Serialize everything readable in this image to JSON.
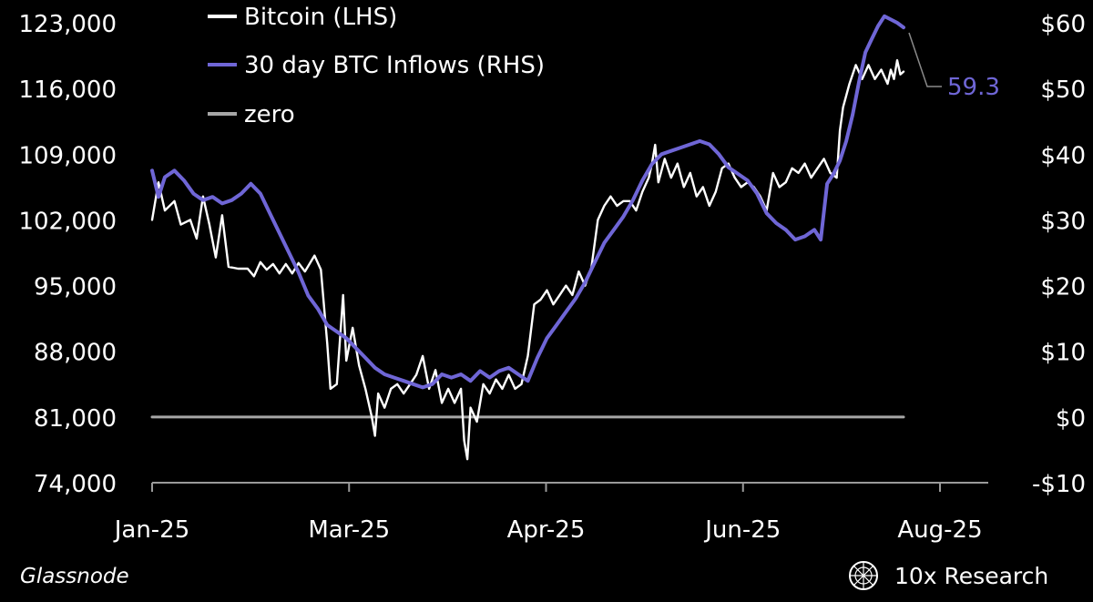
{
  "chart_data": {
    "type": "line",
    "title": "",
    "xlabel": "",
    "ylabel_left": "",
    "ylabel_right": "",
    "x_tick_labels": [
      "Jan-25",
      "Mar-25",
      "Apr-25",
      "Jun-25",
      "Aug-25"
    ],
    "x_range": [
      "2025-01-01",
      "2025-08-25"
    ],
    "x_ticks": [
      "2025-01-01",
      "2025-03-03",
      "2025-05-03",
      "2025-07-03",
      "2025-09-02"
    ],
    "y_left": {
      "ticks": [
        74000,
        81000,
        88000,
        95000,
        102000,
        109000,
        116000,
        123000
      ],
      "tick_labels": [
        "74,000",
        "81,000",
        "88,000",
        "95,000",
        "102,000",
        "109,000",
        "116,000",
        "123,000"
      ],
      "range": [
        74000,
        123000
      ]
    },
    "y_right": {
      "ticks": [
        -10,
        0,
        10,
        20,
        30,
        40,
        50,
        60
      ],
      "tick_labels": [
        "-$10",
        "$0",
        "$10",
        "$20",
        "$30",
        "$40",
        "$50",
        "$60"
      ],
      "range": [
        -10,
        60
      ]
    },
    "legend": {
      "placement": "top-left"
    },
    "series": [
      {
        "name": "Bitcoin (LHS)",
        "axis": "left",
        "color": "#ffffff",
        "points": [
          [
            "2025-01-01",
            102000
          ],
          [
            "2025-01-03",
            106000
          ],
          [
            "2025-01-05",
            103000
          ],
          [
            "2025-01-08",
            104000
          ],
          [
            "2025-01-10",
            101500
          ],
          [
            "2025-01-13",
            102000
          ],
          [
            "2025-01-15",
            100000
          ],
          [
            "2025-01-17",
            104500
          ],
          [
            "2025-01-19",
            101500
          ],
          [
            "2025-01-21",
            98000
          ],
          [
            "2025-01-23",
            102500
          ],
          [
            "2025-01-25",
            97000
          ],
          [
            "2025-01-28",
            96800
          ],
          [
            "2025-01-31",
            96800
          ],
          [
            "2025-02-02",
            96000
          ],
          [
            "2025-02-04",
            97500
          ],
          [
            "2025-02-06",
            96700
          ],
          [
            "2025-02-08",
            97300
          ],
          [
            "2025-02-10",
            96300
          ],
          [
            "2025-02-12",
            97300
          ],
          [
            "2025-02-14",
            96300
          ],
          [
            "2025-02-16",
            97400
          ],
          [
            "2025-02-18",
            96500
          ],
          [
            "2025-02-21",
            98200
          ],
          [
            "2025-02-23",
            96700
          ],
          [
            "2025-02-25",
            88800
          ],
          [
            "2025-02-26",
            84000
          ],
          [
            "2025-02-28",
            84500
          ],
          [
            "2025-03-02",
            94000
          ],
          [
            "2025-03-03",
            87000
          ],
          [
            "2025-03-05",
            90500
          ],
          [
            "2025-03-07",
            86500
          ],
          [
            "2025-03-09",
            84000
          ],
          [
            "2025-03-11",
            81000
          ],
          [
            "2025-03-12",
            79000
          ],
          [
            "2025-03-13",
            83500
          ],
          [
            "2025-03-15",
            82000
          ],
          [
            "2025-03-17",
            84000
          ],
          [
            "2025-03-19",
            84500
          ],
          [
            "2025-03-21",
            83500
          ],
          [
            "2025-03-23",
            84500
          ],
          [
            "2025-03-25",
            85500
          ],
          [
            "2025-03-27",
            87500
          ],
          [
            "2025-03-29",
            84000
          ],
          [
            "2025-03-31",
            86000
          ],
          [
            "2025-04-02",
            82500
          ],
          [
            "2025-04-04",
            84000
          ],
          [
            "2025-04-06",
            82500
          ],
          [
            "2025-04-08",
            84000
          ],
          [
            "2025-04-09",
            78500
          ],
          [
            "2025-04-10",
            76500
          ],
          [
            "2025-04-11",
            82000
          ],
          [
            "2025-04-13",
            80500
          ],
          [
            "2025-04-15",
            84500
          ],
          [
            "2025-04-17",
            83500
          ],
          [
            "2025-04-19",
            85000
          ],
          [
            "2025-04-21",
            84000
          ],
          [
            "2025-04-23",
            85500
          ],
          [
            "2025-04-25",
            84000
          ],
          [
            "2025-04-27",
            84500
          ],
          [
            "2025-04-29",
            87500
          ],
          [
            "2025-05-01",
            93000
          ],
          [
            "2025-05-03",
            93500
          ],
          [
            "2025-05-05",
            94500
          ],
          [
            "2025-05-07",
            93000
          ],
          [
            "2025-05-09",
            94000
          ],
          [
            "2025-05-11",
            95000
          ],
          [
            "2025-05-13",
            94000
          ],
          [
            "2025-05-15",
            96500
          ],
          [
            "2025-05-17",
            95000
          ],
          [
            "2025-05-19",
            97000
          ],
          [
            "2025-05-21",
            102000
          ],
          [
            "2025-05-23",
            103500
          ],
          [
            "2025-05-25",
            104500
          ],
          [
            "2025-05-27",
            103500
          ],
          [
            "2025-05-29",
            104000
          ],
          [
            "2025-05-31",
            104000
          ],
          [
            "2025-06-02",
            103000
          ],
          [
            "2025-06-04",
            105000
          ],
          [
            "2025-06-06",
            106500
          ],
          [
            "2025-06-07",
            108000
          ],
          [
            "2025-06-08",
            110000
          ],
          [
            "2025-06-09",
            106000
          ],
          [
            "2025-06-11",
            108500
          ],
          [
            "2025-06-13",
            106500
          ],
          [
            "2025-06-15",
            108000
          ],
          [
            "2025-06-17",
            105500
          ],
          [
            "2025-06-19",
            107000
          ],
          [
            "2025-06-21",
            104500
          ],
          [
            "2025-06-23",
            105500
          ],
          [
            "2025-06-25",
            103500
          ],
          [
            "2025-06-27",
            105000
          ],
          [
            "2025-06-29",
            107500
          ],
          [
            "2025-07-01",
            108000
          ],
          [
            "2025-07-03",
            106500
          ],
          [
            "2025-07-05",
            105500
          ],
          [
            "2025-07-07",
            106000
          ],
          [
            "2025-07-09",
            105500
          ],
          [
            "2025-07-11",
            104500
          ],
          [
            "2025-07-13",
            103000
          ],
          [
            "2025-07-15",
            107000
          ],
          [
            "2025-07-17",
            105500
          ],
          [
            "2025-07-19",
            106000
          ],
          [
            "2025-07-21",
            107500
          ],
          [
            "2025-07-23",
            107000
          ],
          [
            "2025-07-25",
            108000
          ],
          [
            "2025-07-27",
            106500
          ],
          [
            "2025-07-29",
            107500
          ],
          [
            "2025-07-31",
            108500
          ],
          [
            "2025-08-02",
            107000
          ],
          [
            "2025-08-04",
            106500
          ],
          [
            "2025-08-05",
            111500
          ],
          [
            "2025-08-06",
            114000
          ],
          [
            "2025-08-08",
            116500
          ],
          [
            "2025-08-10",
            118500
          ],
          [
            "2025-08-12",
            117000
          ],
          [
            "2025-08-14",
            118500
          ],
          [
            "2025-08-16",
            117000
          ],
          [
            "2025-08-18",
            118000
          ],
          [
            "2025-08-20",
            116500
          ],
          [
            "2025-08-21",
            118000
          ],
          [
            "2025-08-22",
            117000
          ],
          [
            "2025-08-23",
            119000
          ],
          [
            "2025-08-24",
            117500
          ],
          [
            "2025-08-25",
            117800
          ]
        ]
      },
      {
        "name": "30 day BTC Inflows (RHS)",
        "axis": "right",
        "color": "#6f66d6",
        "points": [
          [
            "2025-01-01",
            37.5
          ],
          [
            "2025-01-03",
            33.5
          ],
          [
            "2025-01-05",
            36.5
          ],
          [
            "2025-01-08",
            37.5
          ],
          [
            "2025-01-11",
            36
          ],
          [
            "2025-01-14",
            34
          ],
          [
            "2025-01-17",
            33
          ],
          [
            "2025-01-20",
            33.5
          ],
          [
            "2025-01-23",
            32.5
          ],
          [
            "2025-01-26",
            33
          ],
          [
            "2025-01-29",
            34
          ],
          [
            "2025-02-01",
            35.5
          ],
          [
            "2025-02-04",
            34
          ],
          [
            "2025-02-07",
            31
          ],
          [
            "2025-02-10",
            28
          ],
          [
            "2025-02-13",
            25
          ],
          [
            "2025-02-16",
            22
          ],
          [
            "2025-02-19",
            18.5
          ],
          [
            "2025-02-22",
            16.5
          ],
          [
            "2025-02-25",
            14
          ],
          [
            "2025-02-28",
            13
          ],
          [
            "2025-03-03",
            12
          ],
          [
            "2025-03-06",
            10.5
          ],
          [
            "2025-03-09",
            9
          ],
          [
            "2025-03-12",
            7.5
          ],
          [
            "2025-03-15",
            6.5
          ],
          [
            "2025-03-18",
            6
          ],
          [
            "2025-03-21",
            5.5
          ],
          [
            "2025-03-24",
            5
          ],
          [
            "2025-03-27",
            4.5
          ],
          [
            "2025-03-30",
            5
          ],
          [
            "2025-04-02",
            6.5
          ],
          [
            "2025-04-05",
            6
          ],
          [
            "2025-04-08",
            6.5
          ],
          [
            "2025-04-11",
            5.5
          ],
          [
            "2025-04-14",
            7
          ],
          [
            "2025-04-17",
            6
          ],
          [
            "2025-04-20",
            7
          ],
          [
            "2025-04-23",
            7.5
          ],
          [
            "2025-04-26",
            6.5
          ],
          [
            "2025-04-29",
            5.5
          ],
          [
            "2025-05-02",
            9
          ],
          [
            "2025-05-05",
            12
          ],
          [
            "2025-05-08",
            14
          ],
          [
            "2025-05-11",
            16
          ],
          [
            "2025-05-14",
            18
          ],
          [
            "2025-05-17",
            20.5
          ],
          [
            "2025-05-20",
            23.5
          ],
          [
            "2025-05-23",
            26.5
          ],
          [
            "2025-05-26",
            28.5
          ],
          [
            "2025-05-29",
            30.5
          ],
          [
            "2025-06-01",
            33
          ],
          [
            "2025-06-04",
            36
          ],
          [
            "2025-06-07",
            38.5
          ],
          [
            "2025-06-10",
            40
          ],
          [
            "2025-06-13",
            40.5
          ],
          [
            "2025-06-16",
            41
          ],
          [
            "2025-06-19",
            41.5
          ],
          [
            "2025-06-22",
            42
          ],
          [
            "2025-06-25",
            41.5
          ],
          [
            "2025-06-28",
            40
          ],
          [
            "2025-07-01",
            38
          ],
          [
            "2025-07-04",
            37
          ],
          [
            "2025-07-07",
            36
          ],
          [
            "2025-07-10",
            34
          ],
          [
            "2025-07-13",
            31
          ],
          [
            "2025-07-16",
            29.5
          ],
          [
            "2025-07-19",
            28.5
          ],
          [
            "2025-07-22",
            27
          ],
          [
            "2025-07-25",
            27.5
          ],
          [
            "2025-07-28",
            28.5
          ],
          [
            "2025-07-30",
            27
          ],
          [
            "2025-08-01",
            35.5
          ],
          [
            "2025-08-03",
            37
          ],
          [
            "2025-08-05",
            39
          ],
          [
            "2025-08-07",
            42
          ],
          [
            "2025-08-09",
            46
          ],
          [
            "2025-08-11",
            51
          ],
          [
            "2025-08-13",
            55.5
          ],
          [
            "2025-08-15",
            57.5
          ],
          [
            "2025-08-17",
            59.5
          ],
          [
            "2025-08-19",
            61
          ],
          [
            "2025-08-21",
            60.5
          ],
          [
            "2025-08-23",
            60
          ],
          [
            "2025-08-25",
            59.3
          ]
        ]
      },
      {
        "name": "zero",
        "axis": "right",
        "color": "#a6a6a6",
        "points": [
          [
            "2025-01-01",
            0
          ],
          [
            "2025-08-25",
            0
          ]
        ]
      }
    ],
    "annotations": [
      {
        "text": "59.3",
        "series": "30 day BTC Inflows (RHS)",
        "date": "2025-08-25",
        "value": 59.3,
        "color": "#6f66d6"
      }
    ]
  },
  "footer": {
    "source": "Glassnode",
    "brand": "10x Research"
  }
}
